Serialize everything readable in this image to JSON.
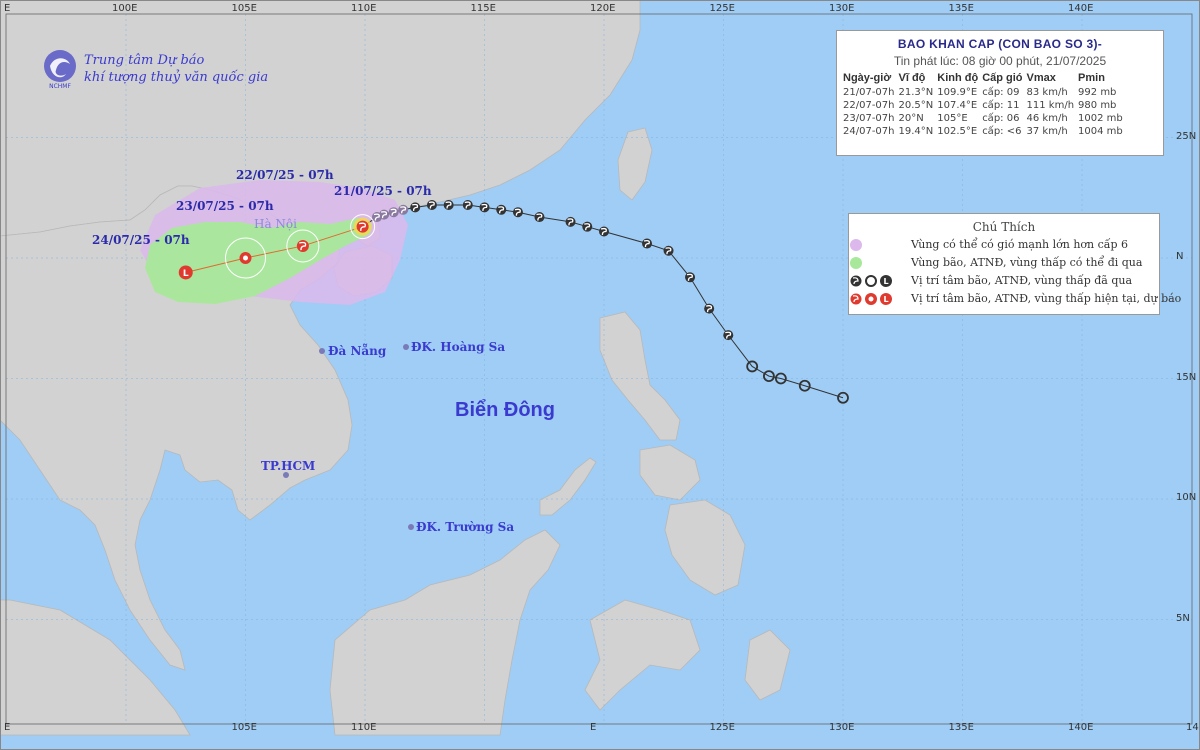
{
  "organization": {
    "line1": "Trung tâm Dự báo",
    "line2": "khí tượng thuỷ văn quốc gia",
    "logo_text": "NCHMF"
  },
  "bulletin": {
    "title": "BAO KHAN CAP (CON BAO SO 3)-",
    "subtitle": "Tin phát lúc: 08 giờ 00 phút, 21/07/2025",
    "headers": [
      "Ngày-giờ",
      "Vĩ độ",
      "Kinh độ",
      "Cấp gió",
      "Vmax",
      "Pmin"
    ],
    "rows": [
      [
        "21/07-07h",
        "21.3°N",
        "109.9°E",
        "cấp: 09",
        "83 km/h",
        "992 mb"
      ],
      [
        "22/07-07h",
        "20.5°N",
        "107.4°E",
        "cấp: 11",
        "111 km/h",
        "980 mb"
      ],
      [
        "23/07-07h",
        "20°N",
        "105°E",
        "cấp: 06",
        "46 km/h",
        "1002 mb"
      ],
      [
        "24/07-07h",
        "19.4°N",
        "102.5°E",
        "cấp: <6",
        "37 km/h",
        "1004 mb"
      ]
    ]
  },
  "legend": {
    "title": "Chú Thích",
    "items": [
      {
        "label": "Vùng có thể có gió mạnh lớn hơn cấp 6",
        "color": "#dcb8ec"
      },
      {
        "label": "Vùng bão, ATNĐ, vùng thấp có thể đi qua",
        "color": "#a8e89a"
      },
      {
        "label": "Vị trí tâm bão, ATNĐ, vùng thấp đã qua",
        "color": "#333333"
      },
      {
        "label": "Vị trí tâm bão, ATNĐ, vùng thấp hiện tại, dự báo",
        "color": "#e03a2e"
      }
    ]
  },
  "places": {
    "ha_noi": "Hà Nội",
    "da_nang": "Đà Nẵng",
    "hoang_sa": "ĐK. Hoàng Sa",
    "tp_hcm": "TP.HCM",
    "truong_sa": "ĐK. Trường Sa",
    "sea": "Biển Đông"
  },
  "forecast_labels": {
    "d21": "21/07/25 - 07h",
    "d22": "22/07/25 - 07h",
    "d23": "23/07/25 - 07h",
    "d24": "24/07/25 - 07h"
  },
  "axes": {
    "lon_top": [
      "E",
      "100E",
      "105E",
      "110E",
      "115E",
      "120E",
      "125E",
      "130E",
      "135E",
      "140E"
    ],
    "lon_bottom": [
      "E",
      "105E",
      "110E",
      "E",
      "125E",
      "130E",
      "135E",
      "140E",
      "14"
    ],
    "lat_right": [
      "25N",
      "N",
      "15N",
      "10N",
      "5N"
    ]
  },
  "colors": {
    "sea": "#9fcdf5",
    "land": "#d2d2d2",
    "wind_zone": "#dcb8ec",
    "track_zone": "#a8e89a",
    "forecast": "#e03a2e",
    "past": "#333333"
  },
  "track": {
    "past_points": [
      [
        130.0,
        14.2
      ],
      [
        128.4,
        14.7
      ],
      [
        127.4,
        15.0
      ],
      [
        126.9,
        15.1
      ],
      [
        126.2,
        15.5
      ],
      [
        125.2,
        16.8
      ],
      [
        124.4,
        17.9
      ],
      [
        123.6,
        19.2
      ],
      [
        122.7,
        20.3
      ],
      [
        121.8,
        20.6
      ],
      [
        120.0,
        21.1
      ],
      [
        119.3,
        21.3
      ],
      [
        118.6,
        21.5
      ],
      [
        117.3,
        21.7
      ],
      [
        116.4,
        21.9
      ],
      [
        115.7,
        22.0
      ],
      [
        115.0,
        22.1
      ],
      [
        114.3,
        22.2
      ],
      [
        113.5,
        22.2
      ],
      [
        112.8,
        22.2
      ],
      [
        112.1,
        22.1
      ],
      [
        111.6,
        22.0
      ],
      [
        111.2,
        21.9
      ],
      [
        110.8,
        21.8
      ],
      [
        110.5,
        21.7
      ]
    ],
    "past_type": [
      "low",
      "low",
      "low",
      "low",
      "low",
      "storm",
      "storm",
      "storm",
      "storm",
      "storm",
      "storm",
      "storm",
      "storm",
      "storm",
      "storm",
      "storm",
      "storm",
      "storm",
      "storm",
      "storm",
      "storm",
      "storm",
      "storm",
      "storm",
      "storm"
    ],
    "forecast_points": [
      [
        109.9,
        21.3
      ],
      [
        107.4,
        20.5
      ],
      [
        105.0,
        20.0
      ],
      [
        102.5,
        19.4
      ]
    ],
    "forecast_type": [
      "storm",
      "storm",
      "depression",
      "low"
    ]
  }
}
